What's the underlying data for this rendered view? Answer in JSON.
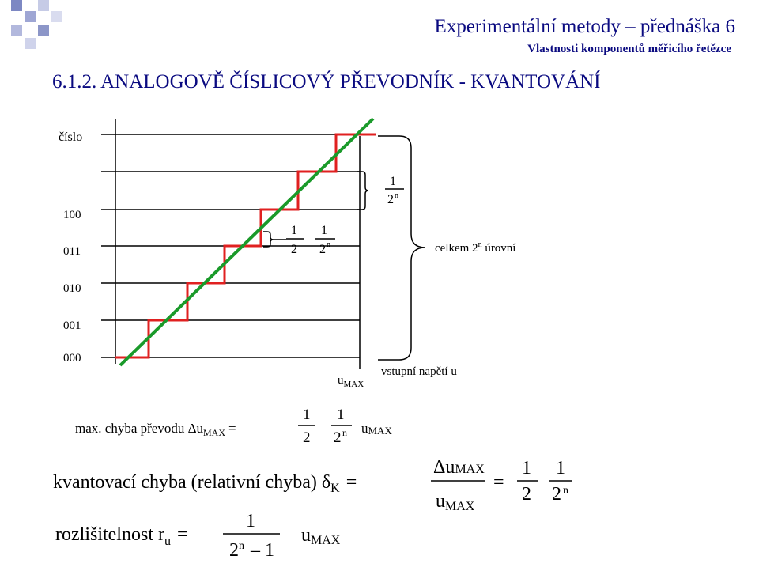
{
  "header": {
    "title": "Experimentální metody – přednáška 6",
    "subtitle": "Vlastnosti komponentů měřicího řetězce"
  },
  "section_title": "6.1.2. ANALOGOVĚ ČÍSLICOVÝ PŘEVODNÍK - KVANTOVÁNÍ",
  "diagram": {
    "y_axis_label": "číslo",
    "x_axis_label": "vstupní napětí u",
    "levels": [
      "000",
      "001",
      "010",
      "011",
      "100"
    ],
    "u_max": {
      "base": "u",
      "sub": "MAX"
    },
    "annot_half": {
      "num": "1",
      "den": "2"
    },
    "annot_step": {
      "num": "1",
      "den_base": "2",
      "den_exp": "n"
    },
    "annot_step2": {
      "num": "1",
      "den_base": "2",
      "den_exp": "n"
    },
    "celkem": {
      "prefix": "celkem 2",
      "exp": "n",
      "suffix": " úrovní"
    }
  },
  "formulas": {
    "max_error": {
      "label": "max. chyba převodu Δu",
      "label_sub": "MAX",
      "eq": "=",
      "f1": {
        "num": "1",
        "den": "2"
      },
      "f2": {
        "num": "1",
        "den_base": "2",
        "den_exp": "n"
      },
      "tail_base": "u",
      "tail_sub": "MAX"
    },
    "quant_error": {
      "label": "kvantovací chyba (relativní chyba) δ",
      "label_sub": "K",
      "eq": "=",
      "num_base": "Δu",
      "num_sub": "MAX",
      "den_base": "u",
      "den_sub": "MAX",
      "eq2": "=",
      "f1": {
        "num": "1",
        "den": "2"
      },
      "f2": {
        "num": "1",
        "den_base": "2",
        "den_exp": "n"
      }
    },
    "resolution": {
      "label": "rozlišitelnost r",
      "label_sub": "u",
      "eq": "=",
      "num": "1",
      "den_base": "2",
      "den_exp": "n",
      "den_minus": "– 1",
      "tail_base": "u",
      "tail_sub": "MAX"
    }
  },
  "colors": {
    "accent": "#0a0a80",
    "staircase": "#e02020",
    "ideal_line": "#1a9a2a",
    "logo_squares": "#8c96c8"
  }
}
